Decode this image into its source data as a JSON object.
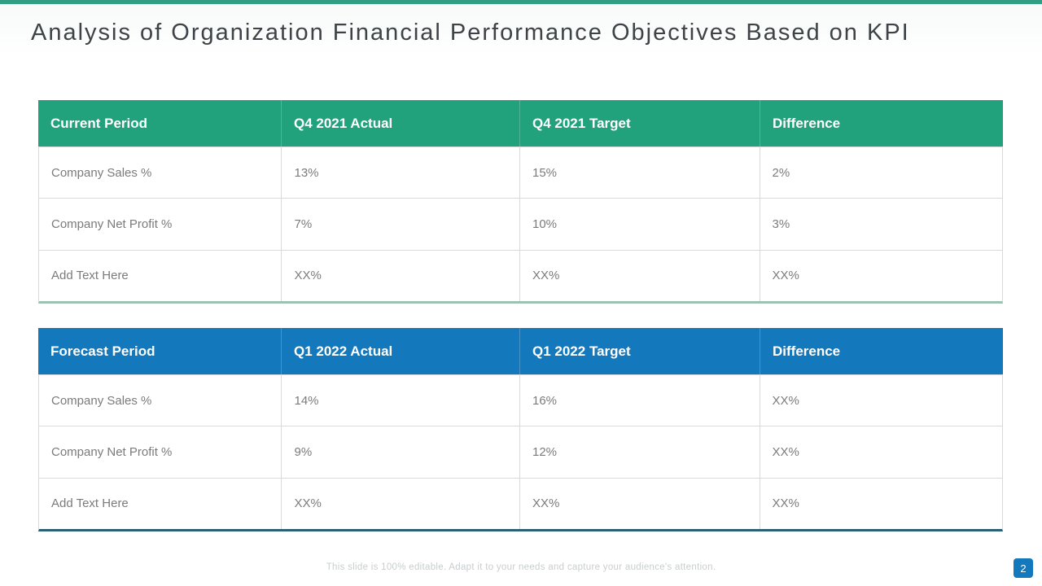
{
  "slide": {
    "title": "Analysis of Organization Financial Performance Objectives Based on KPI",
    "footer": "This slide is 100% editable. Adapt it to your needs and capture your audience's attention.",
    "page_number": "2"
  },
  "colors": {
    "table1_header_green": "#21A17C",
    "table2_header_blue": "#1478BD",
    "topbar_green": "#2F9E83",
    "table1_bottom_border": "#9CC2B2",
    "table2_bottom_border": "#2B5F78",
    "grid_line": "#D9D9D9",
    "body_text": "#7B7B7B"
  },
  "tables": [
    {
      "name": "current-period",
      "headers": [
        "Current Period",
        "Q4 2021 Actual",
        "Q4 2021 Target",
        "Difference"
      ],
      "rows": [
        [
          "Company Sales %",
          "13%",
          "15%",
          "2%"
        ],
        [
          "Company Net Profit %",
          "7%",
          "10%",
          "3%"
        ],
        [
          "Add Text Here",
          "XX%",
          "XX%",
          "XX%"
        ]
      ]
    },
    {
      "name": "forecast-period",
      "headers": [
        "Forecast Period",
        "Q1 2022 Actual",
        "Q1 2022 Target",
        "Difference"
      ],
      "rows": [
        [
          "Company Sales %",
          "14%",
          "16%",
          "XX%"
        ],
        [
          "Company Net Profit %",
          "9%",
          "12%",
          "XX%"
        ],
        [
          "Add Text Here",
          "XX%",
          "XX%",
          "XX%"
        ]
      ]
    }
  ]
}
